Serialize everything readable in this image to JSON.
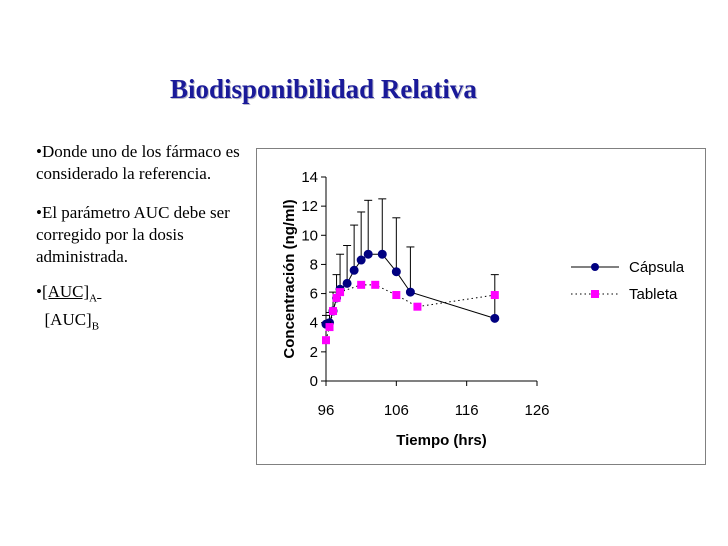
{
  "slide": {
    "title": "Biodisponibilidad Relativa",
    "bullets": [
      {
        "text": "•Donde uno de los fármaco es considerado la referencia."
      },
      {
        "text": "•El parámetro AUC debe ser corregido por la dosis administrada."
      }
    ],
    "auc": {
      "prefix": "•",
      "num": "[AUC]",
      "num_sub": "A",
      "den": "[AUC]",
      "den_sub": "B"
    }
  },
  "chart_data": {
    "type": "line",
    "xlabel": "Tiempo (hrs)",
    "ylabel": "Concentración (ng/ml)",
    "xlim": [
      96,
      126
    ],
    "ylim": [
      0,
      14
    ],
    "xticks": [
      96,
      106,
      116,
      126
    ],
    "yticks": [
      0,
      2,
      4,
      6,
      8,
      10,
      12,
      14
    ],
    "grid": false,
    "legend": "right",
    "series": [
      {
        "name": "Cápsula",
        "color": "#000080",
        "marker": "circle",
        "line": "solid",
        "x": [
          96,
          96.5,
          97,
          97.5,
          98,
          99,
          100,
          101,
          102,
          104,
          106,
          108,
          120
        ],
        "y": [
          3.9,
          4.0,
          4.8,
          5.7,
          6.3,
          6.7,
          7.6,
          8.3,
          8.7,
          8.7,
          7.5,
          6.1,
          4.3
        ],
        "err": [
          0.6,
          0.7,
          1.3,
          1.6,
          2.4,
          2.6,
          3.1,
          3.3,
          3.7,
          3.8,
          3.7,
          3.1,
          3.0
        ]
      },
      {
        "name": "Tableta",
        "color": "#ff00ff",
        "marker": "square",
        "line": "dotted",
        "x": [
          96,
          96.5,
          97,
          97.5,
          98,
          101,
          103,
          106,
          109,
          120
        ],
        "y": [
          2.8,
          3.7,
          4.8,
          5.7,
          6.1,
          6.6,
          6.6,
          5.9,
          5.1,
          5.9
        ],
        "err": [
          0,
          0,
          0,
          0,
          0,
          0,
          0,
          0,
          0,
          0
        ]
      }
    ]
  }
}
